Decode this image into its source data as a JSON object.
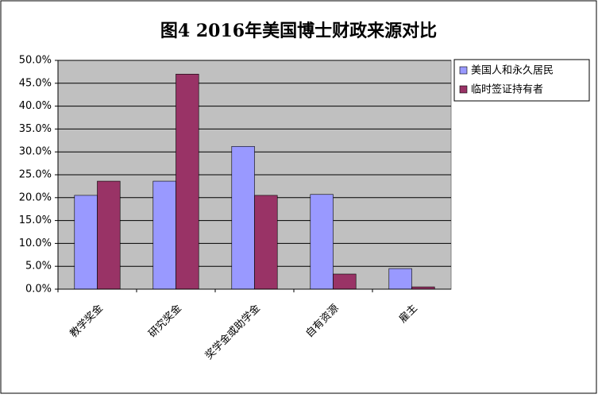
{
  "chart_data": {
    "type": "bar",
    "title": "图4 2016年美国博士财政来源对比",
    "categories": [
      "教学奖金",
      "研究奖金",
      "奖学金或助学金",
      "自有资源",
      "雇主"
    ],
    "series": [
      {
        "name": "美国人和永久居民",
        "color": "#9999ff",
        "values": [
          20.5,
          23.6,
          31.2,
          20.7,
          4.5
        ]
      },
      {
        "name": "临时签证持有者",
        "color": "#993366",
        "values": [
          23.6,
          47.0,
          20.5,
          3.3,
          0.5
        ]
      }
    ],
    "ylim": [
      0,
      50
    ],
    "yticks": [
      {
        "value": 0,
        "label": "0.0%"
      },
      {
        "value": 5,
        "label": "5.0%"
      },
      {
        "value": 10,
        "label": "10.0%"
      },
      {
        "value": 15,
        "label": "15.0%"
      },
      {
        "value": 20,
        "label": "20.0%"
      },
      {
        "value": 25,
        "label": "25.0%"
      },
      {
        "value": 30,
        "label": "30.0%"
      },
      {
        "value": 35,
        "label": "35.0%"
      },
      {
        "value": 40,
        "label": "40.0%"
      },
      {
        "value": 45,
        "label": "45.0%"
      },
      {
        "value": 50,
        "label": "50.0%"
      }
    ],
    "grid": true,
    "legend": "right"
  }
}
